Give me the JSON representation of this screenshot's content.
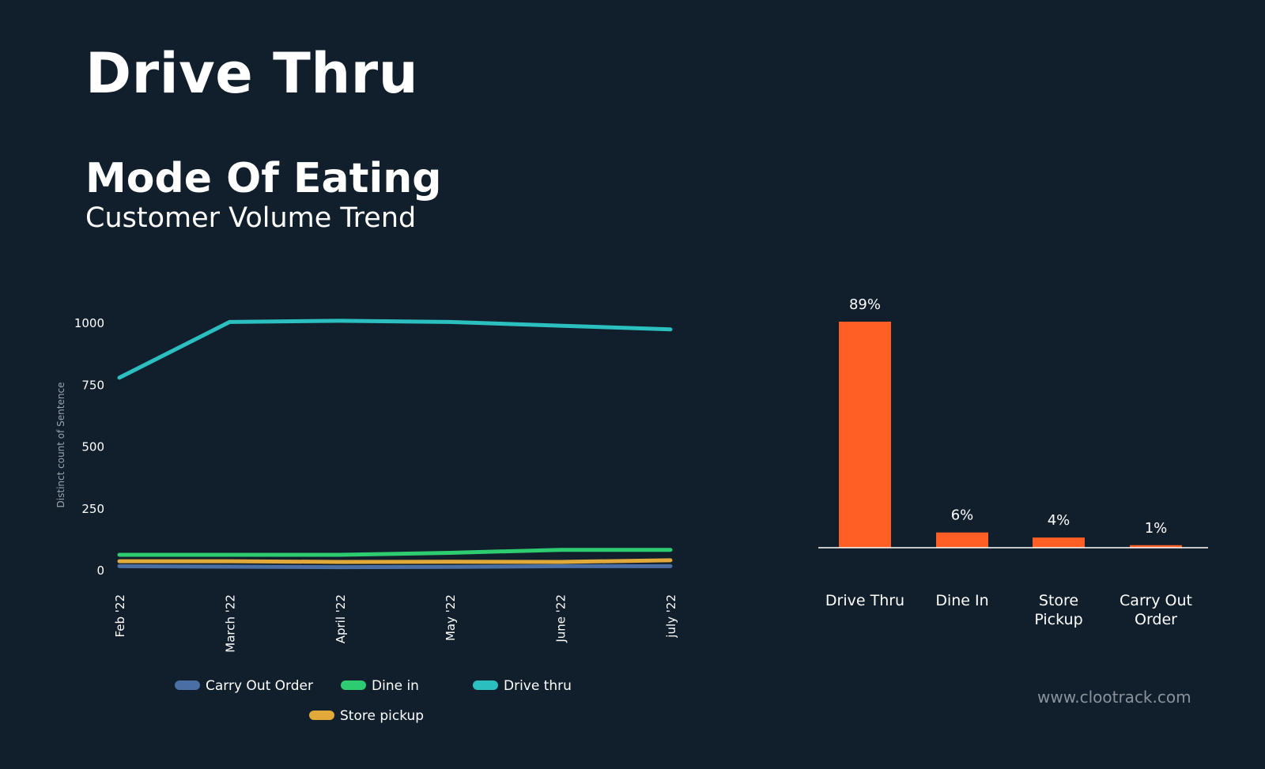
{
  "header": {
    "title": "Drive Thru",
    "section_title": "Mode Of Eating",
    "section_subtitle": "Customer Volume Trend"
  },
  "footer": {
    "url": "www.clootrack.com"
  },
  "chart_data": [
    {
      "type": "line",
      "title": "",
      "xlabel": "",
      "ylabel": "Distinct count of Sentence",
      "x": [
        "Feb '22",
        "March '22",
        "April '22",
        "May '22",
        "June '22",
        "july '22"
      ],
      "ylim": [
        0,
        1000
      ],
      "yticks": [
        0,
        250,
        500,
        750,
        1000
      ],
      "grid": false,
      "legend": "bottom",
      "series": [
        {
          "name": "Carry Out Order",
          "color": "#4a6fa5",
          "values": [
            18,
            16,
            14,
            15,
            18,
            18
          ]
        },
        {
          "name": "Dine in",
          "color": "#2ecc71",
          "values": [
            64,
            64,
            64,
            72,
            84,
            84
          ]
        },
        {
          "name": "Drive thru",
          "color": "#2bbfbf",
          "values": [
            780,
            1005,
            1010,
            1005,
            990,
            975
          ]
        },
        {
          "name": "Store pickup",
          "color": "#e0a93a",
          "values": [
            38,
            38,
            35,
            36,
            35,
            42
          ]
        }
      ]
    },
    {
      "type": "bar",
      "title": "",
      "xlabel": "",
      "ylabel": "",
      "categories": [
        "Drive Thru",
        "Dine In",
        "Store Pickup",
        "Carry Out Order"
      ],
      "category_lines": [
        [
          "Drive Thru"
        ],
        [
          "Dine In"
        ],
        [
          "Store",
          "Pickup"
        ],
        [
          "Carry Out",
          "Order"
        ]
      ],
      "values": [
        89,
        6,
        4,
        1
      ],
      "labels": [
        "89%",
        "6%",
        "4%",
        "1%"
      ],
      "ylim": [
        0,
        89
      ],
      "color": "#ff5e24",
      "grid": false
    }
  ]
}
